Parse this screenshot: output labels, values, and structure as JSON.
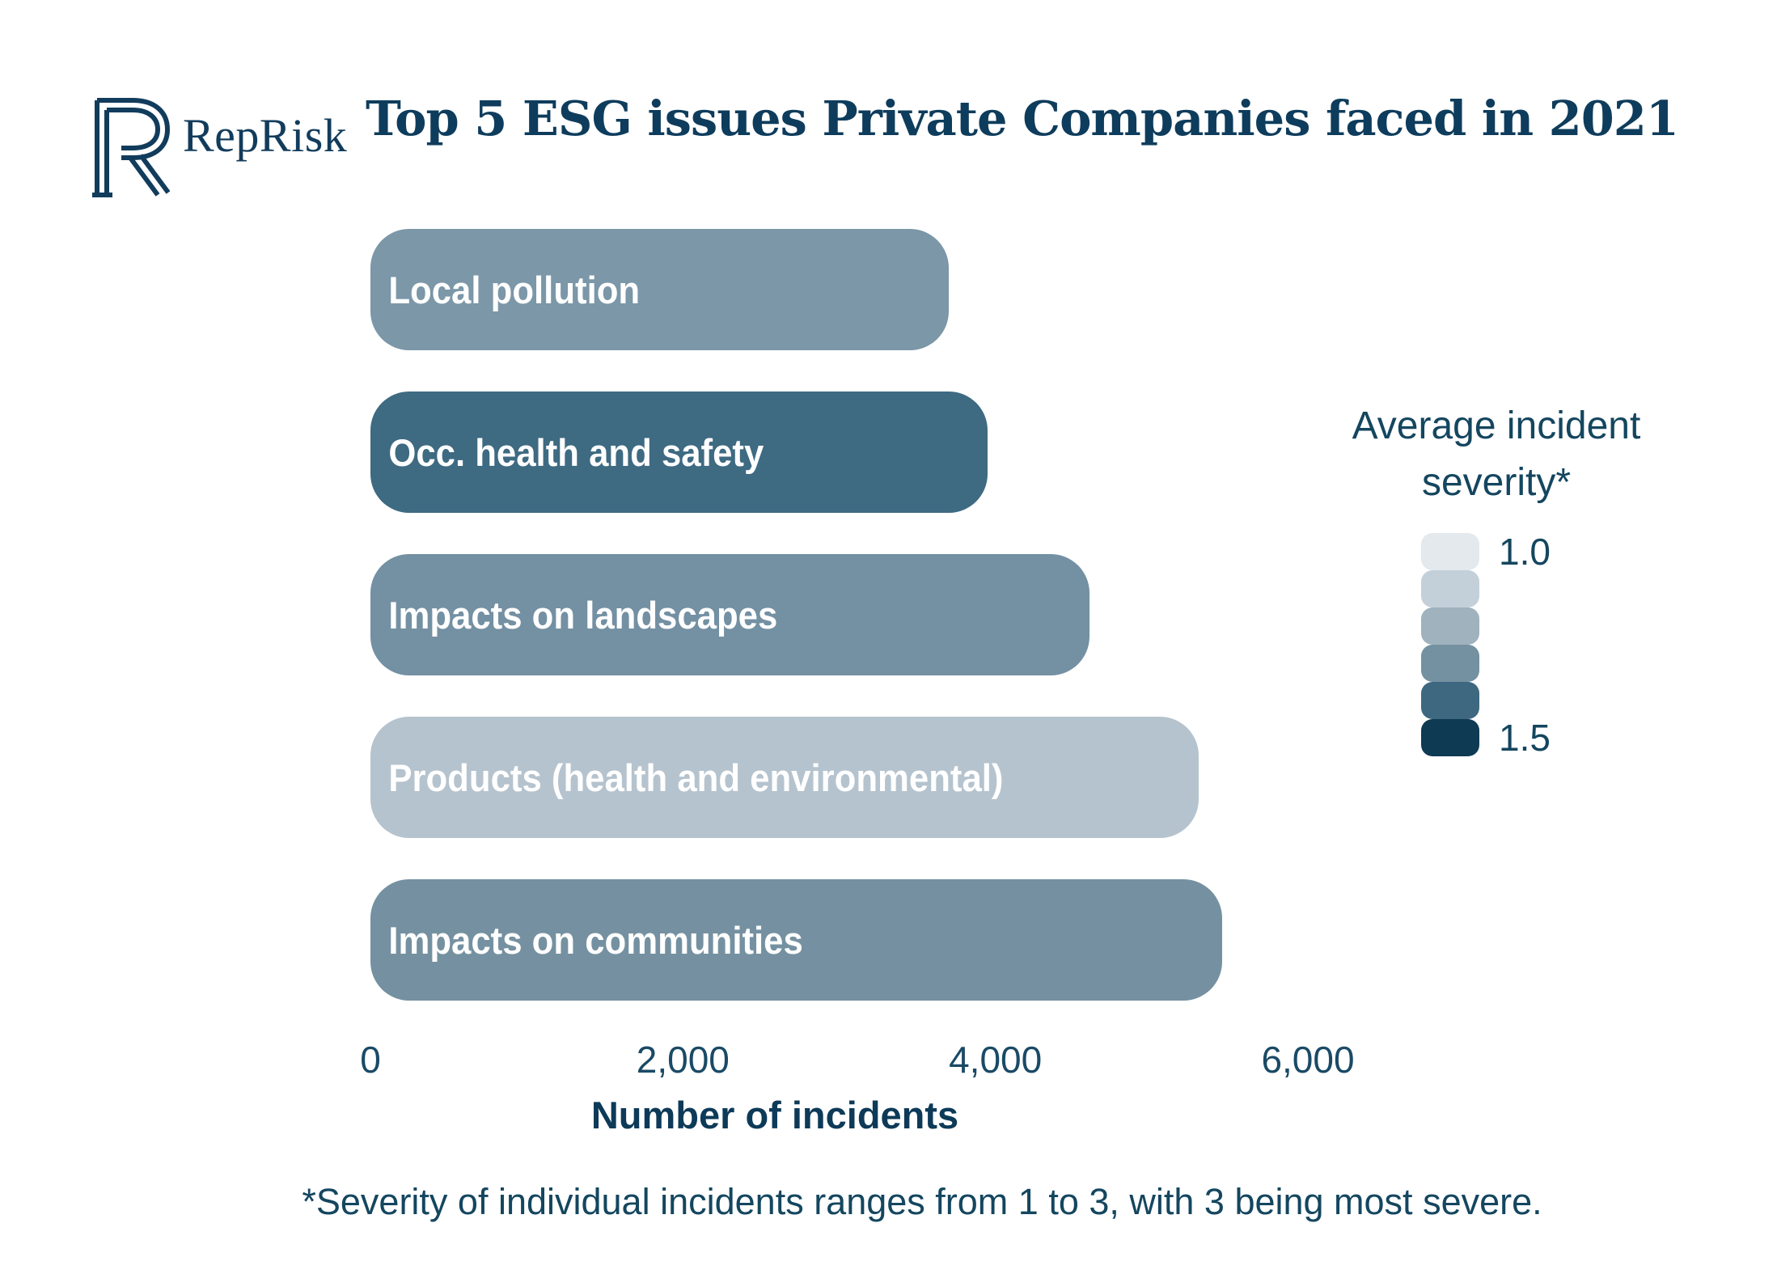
{
  "logo": {
    "brand": "RepRisk"
  },
  "header": {
    "title": "Top 5 ESG issues Private Companies faced in 2021"
  },
  "chart_data": {
    "type": "bar",
    "orientation": "horizontal",
    "title": "Top 5 ESG issues Private Companies faced in 2021",
    "categories": [
      "Local pollution",
      "Occ. health and safety",
      "Impacts on landscapes",
      "Products (health and environmental)",
      "Impacts on communities"
    ],
    "values": [
      3700,
      3950,
      4600,
      5300,
      5450
    ],
    "bar_colors": [
      "#7B97A8",
      "#3E6A82",
      "#7490A3",
      "#B5C3CE",
      "#7591A1"
    ],
    "xlabel": "Number of incidents",
    "xlim": [
      0,
      6000
    ],
    "x_ticks": [
      0,
      2000,
      4000,
      6000
    ],
    "x_tick_labels": [
      "0",
      "2,000",
      "4,000",
      "6,000"
    ],
    "grid": false,
    "legend_position": "right",
    "bar_label_color": "#FFFFFF"
  },
  "legend": {
    "title": "Average incident severity*",
    "min_label": "1.0",
    "max_label": "1.5",
    "swatch_colors": [
      "#E3E9ED",
      "#C4D0D9",
      "#9FB2BE",
      "#7491A1",
      "#3E6880",
      "#0E3A54"
    ]
  },
  "footnote": "*Severity of individual incidents ranges from 1 to 3, with 3 being most severe.",
  "colors": {
    "title_navy": "#0E3C5C",
    "text_navy": "#14465F",
    "background": "#FFFFFF"
  }
}
